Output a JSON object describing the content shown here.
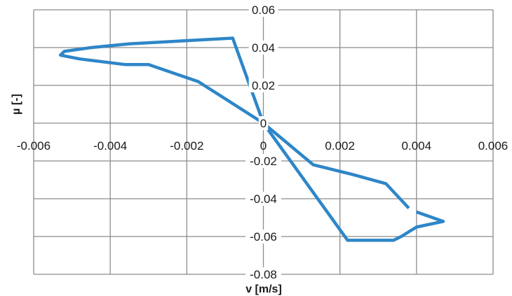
{
  "chart_data": {
    "type": "line",
    "title": "",
    "xlabel": "v [m/s]",
    "ylabel": "µ [-]",
    "xlim": [
      -0.006,
      0.006
    ],
    "ylim": [
      -0.08,
      0.06
    ],
    "grid": true,
    "legend": "none",
    "x_ticks": [
      -0.006,
      -0.004,
      -0.002,
      0,
      0.002,
      0.004,
      0.006
    ],
    "x_tick_labels": [
      "-0.006",
      "-0.004",
      "-0.002",
      "0",
      "0.002",
      "0.004",
      "0.006"
    ],
    "y_ticks": [
      0.06,
      0.04,
      0.02,
      0,
      -0.02,
      -0.04,
      -0.06,
      -0.08
    ],
    "y_tick_labels": [
      "0.06",
      "0.04",
      "0.02",
      "0",
      "-0.02",
      "-0.04",
      "-0.06",
      "-0.08"
    ],
    "series": [
      {
        "color": "#2e86c8",
        "x": [
          0,
          0.0013,
          0.0023,
          0.0032,
          0.0038
        ],
        "y": [
          0,
          -0.022,
          -0.027,
          -0.032,
          -0.045
        ]
      },
      {
        "color": "#2e86c8",
        "x": [
          0.004,
          0.0047,
          0.004,
          0.0036,
          0.0034,
          0.0022,
          0,
          -0.0017,
          -0.003,
          -0.0036,
          -0.0048,
          -0.0053,
          -0.0052,
          -0.0045,
          -0.0035,
          -0.0008,
          0
        ],
        "y": [
          -0.047,
          -0.052,
          -0.055,
          -0.06,
          -0.062,
          -0.062,
          0,
          0.022,
          0.031,
          0.031,
          0.034,
          0.036,
          0.038,
          0.04,
          0.042,
          0.045,
          0
        ]
      }
    ]
  }
}
